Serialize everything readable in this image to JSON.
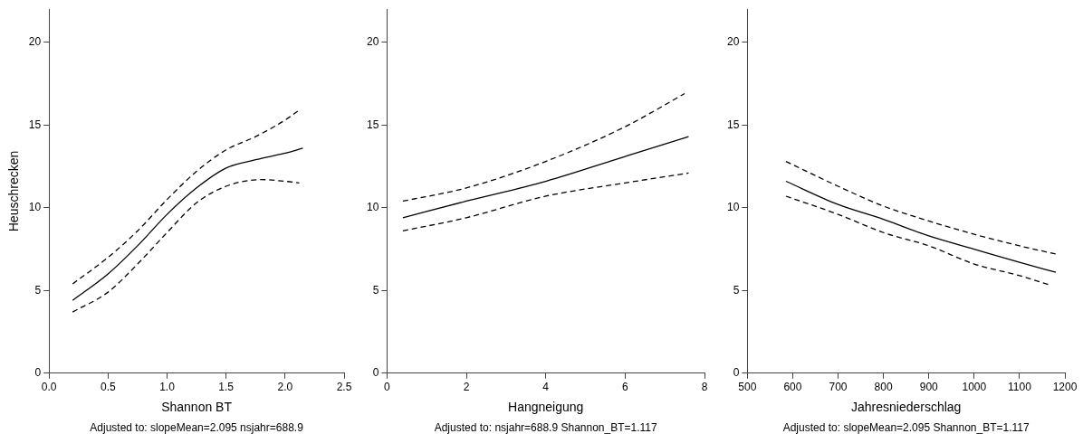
{
  "chart_data": [
    {
      "type": "line",
      "xlabel": "Shannon BT",
      "ylabel": "Heuschrecken",
      "annotations": [
        "Adjusted to: slopeMean=2.095 nsjahr=688.9"
      ],
      "xlim": [
        0,
        2.5
      ],
      "xticks": [
        {
          "value": 0,
          "label": "0.0"
        },
        {
          "value": 0.5,
          "label": "0.5"
        },
        {
          "value": 1,
          "label": "1.0"
        },
        {
          "value": 1.5,
          "label": "1.5"
        },
        {
          "value": 2,
          "label": "2.0"
        },
        {
          "value": 2.5,
          "label": "2.5"
        }
      ],
      "ylim": [
        0,
        22
      ],
      "yticks": [
        0,
        5,
        10,
        15,
        20
      ],
      "marker": "none",
      "series": [
        {
          "color": "#000000",
          "line_style": "solid",
          "x": [
            0.2,
            0.5,
            0.75,
            1.0,
            1.25,
            1.5,
            1.75,
            2.0,
            2.15
          ],
          "values": [
            4.4,
            6.0,
            7.7,
            9.6,
            11.2,
            12.4,
            12.9,
            13.3,
            13.6
          ]
        },
        {
          "color": "#000000",
          "line_style": "dashed",
          "x": [
            0.2,
            0.5,
            0.75,
            1.0,
            1.25,
            1.5,
            1.75,
            2.0,
            2.12
          ],
          "values": [
            5.4,
            7.0,
            8.6,
            10.5,
            12.2,
            13.5,
            14.3,
            15.3,
            15.9
          ]
        },
        {
          "color": "#000000",
          "line_style": "dashed",
          "x": [
            0.2,
            0.5,
            0.75,
            1.0,
            1.25,
            1.5,
            1.8,
            2.0,
            2.12
          ],
          "values": [
            3.7,
            4.9,
            6.6,
            8.5,
            10.3,
            11.3,
            11.7,
            11.6,
            11.5
          ]
        }
      ]
    },
    {
      "type": "line",
      "xlabel": "Hangneigung",
      "annotations": [
        "Adjusted to: nsjahr=688.9 Shannon_BT=1.117"
      ],
      "xlim": [
        0,
        8
      ],
      "xticks": [
        0,
        2,
        4,
        6,
        8
      ],
      "ylim": [
        0,
        22
      ],
      "yticks": [
        0,
        5,
        10,
        15,
        20
      ],
      "marker": "none",
      "series": [
        {
          "color": "#000000",
          "line_style": "solid",
          "x": [
            0.4,
            2,
            4,
            6,
            7.6
          ],
          "values": [
            9.4,
            10.4,
            11.6,
            13.1,
            14.3
          ]
        },
        {
          "color": "#000000",
          "line_style": "dashed",
          "x": [
            0.4,
            2,
            4,
            6,
            7.5
          ],
          "values": [
            10.4,
            11.2,
            12.8,
            14.9,
            16.9
          ]
        },
        {
          "color": "#000000",
          "line_style": "dashed",
          "x": [
            0.4,
            2,
            4,
            6,
            7.6
          ],
          "values": [
            8.6,
            9.4,
            10.7,
            11.5,
            12.1
          ]
        }
      ]
    },
    {
      "type": "line",
      "xlabel": "Jahresniederschlag",
      "annotations": [
        "Adjusted to: slopeMean=2.095 Shannon_BT=1.117"
      ],
      "xlim": [
        500,
        1200
      ],
      "xticks": [
        500,
        600,
        700,
        800,
        900,
        1000,
        1100,
        1200
      ],
      "ylim": [
        0,
        22
      ],
      "yticks": [
        0,
        5,
        10,
        15,
        20
      ],
      "marker": "none",
      "series": [
        {
          "color": "#000000",
          "line_style": "solid",
          "x": [
            585,
            700,
            800,
            900,
            1000,
            1100,
            1180
          ],
          "values": [
            11.6,
            10.2,
            9.3,
            8.3,
            7.5,
            6.7,
            6.1
          ]
        },
        {
          "color": "#000000",
          "line_style": "dashed",
          "x": [
            585,
            700,
            800,
            900,
            1000,
            1100,
            1180
          ],
          "values": [
            12.8,
            11.3,
            10.1,
            9.2,
            8.4,
            7.7,
            7.2
          ]
        },
        {
          "color": "#000000",
          "line_style": "dashed",
          "x": [
            585,
            700,
            800,
            900,
            1000,
            1100,
            1170
          ],
          "values": [
            10.7,
            9.6,
            8.5,
            7.7,
            6.6,
            5.9,
            5.3
          ]
        }
      ]
    }
  ]
}
